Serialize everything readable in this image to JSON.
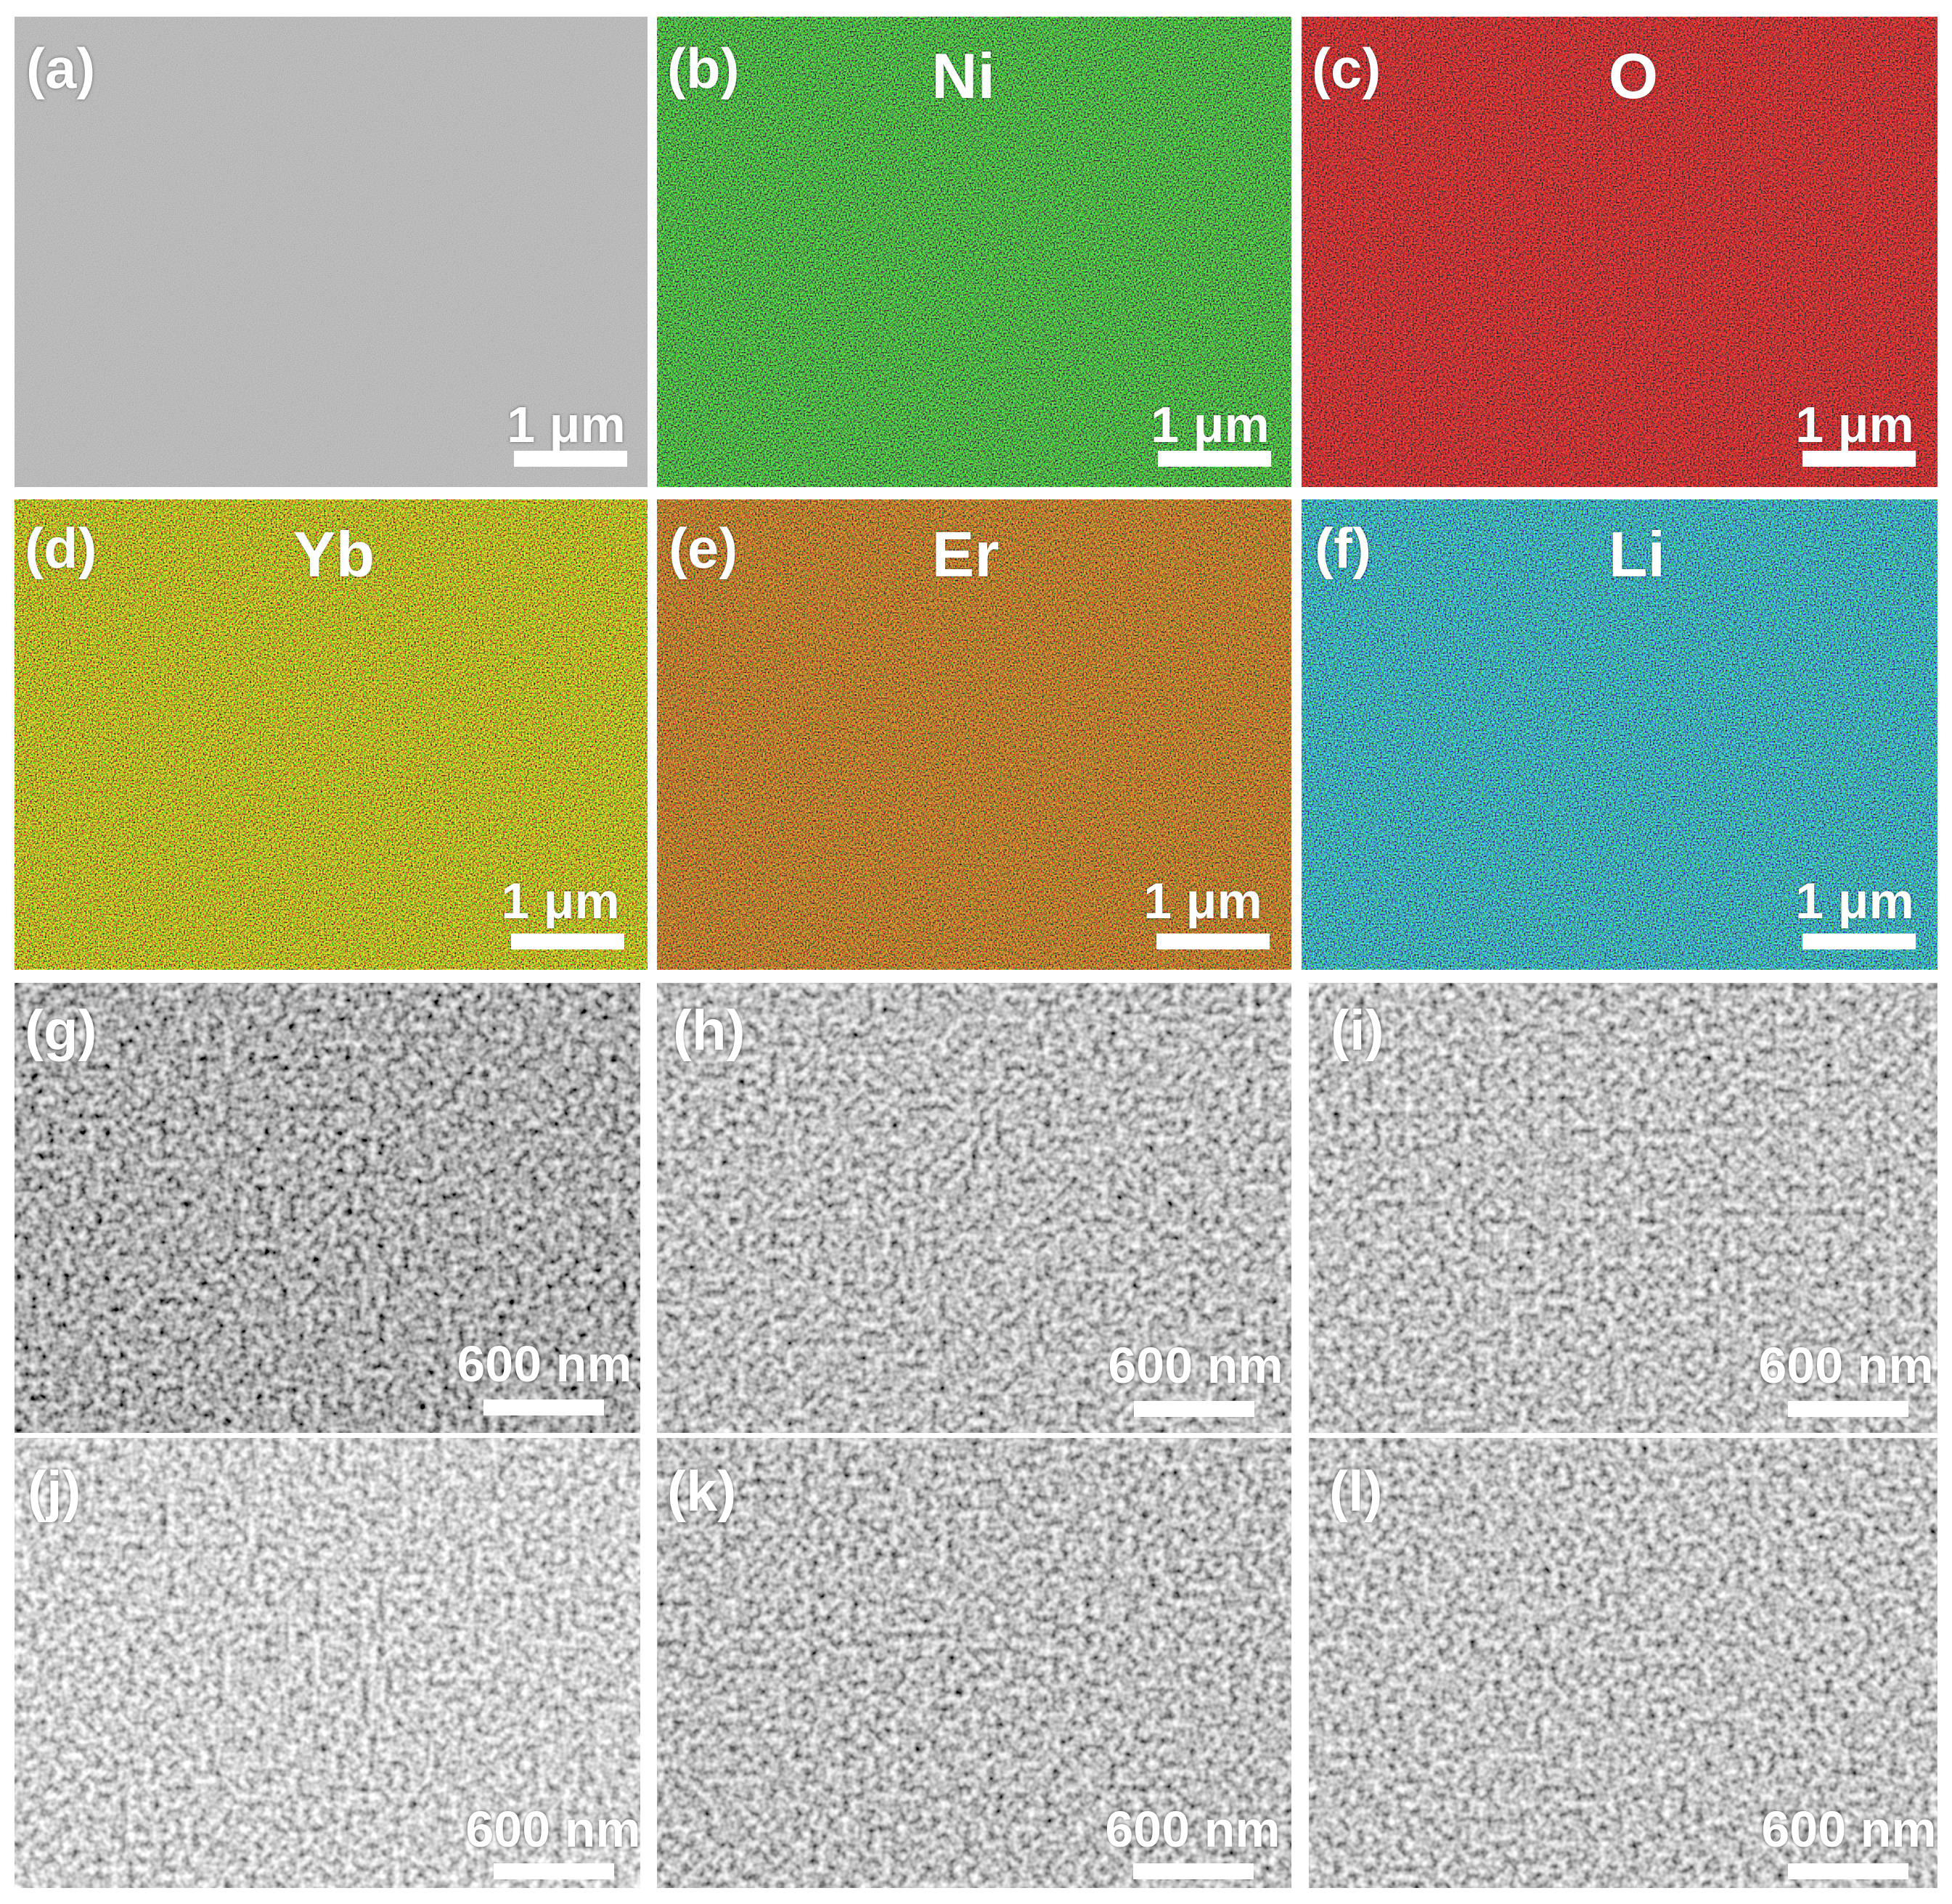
{
  "panels": [
    {
      "id": "a",
      "label": "(a)",
      "element": "",
      "type": "sem-smooth",
      "color": "#7b7b7b",
      "scale": "1 μm"
    },
    {
      "id": "b",
      "label": "(b)",
      "element": "Ni",
      "type": "map",
      "color": "#22b21c",
      "scale": "1 μm"
    },
    {
      "id": "c",
      "label": "(c)",
      "element": "O",
      "type": "map",
      "color": "#e01010",
      "scale": "1 μm"
    },
    {
      "id": "d",
      "label": "(d)",
      "element": "Yb",
      "type": "map",
      "color": "#c8c20a",
      "scale": "1 μm"
    },
    {
      "id": "e",
      "label": "(e)",
      "element": "Er",
      "type": "map",
      "color": "#c4580e",
      "scale": "1 μm"
    },
    {
      "id": "f",
      "label": "(f)",
      "element": "Li",
      "type": "map",
      "color": "#18a9c4",
      "scale": "1 μm"
    },
    {
      "id": "g",
      "label": "(g)",
      "element": "",
      "type": "sem-porous",
      "color": "#6e6e6e",
      "scale": "600 nm"
    },
    {
      "id": "h",
      "label": "(h)",
      "element": "",
      "type": "sem-porous",
      "color": "#858585",
      "scale": "600 nm"
    },
    {
      "id": "i",
      "label": "(i)",
      "element": "",
      "type": "sem-porous",
      "color": "#8a8a8a",
      "scale": "600 nm"
    },
    {
      "id": "j",
      "label": "(j)",
      "element": "",
      "type": "sem-porous",
      "color": "#a0a0a0",
      "scale": "600 nm"
    },
    {
      "id": "k",
      "label": "(k)",
      "element": "",
      "type": "sem-porous",
      "color": "#878787",
      "scale": "600 nm"
    },
    {
      "id": "l",
      "label": "(l)",
      "element": "",
      "type": "sem-porous",
      "color": "#8d8d8d",
      "scale": "600 nm"
    }
  ]
}
